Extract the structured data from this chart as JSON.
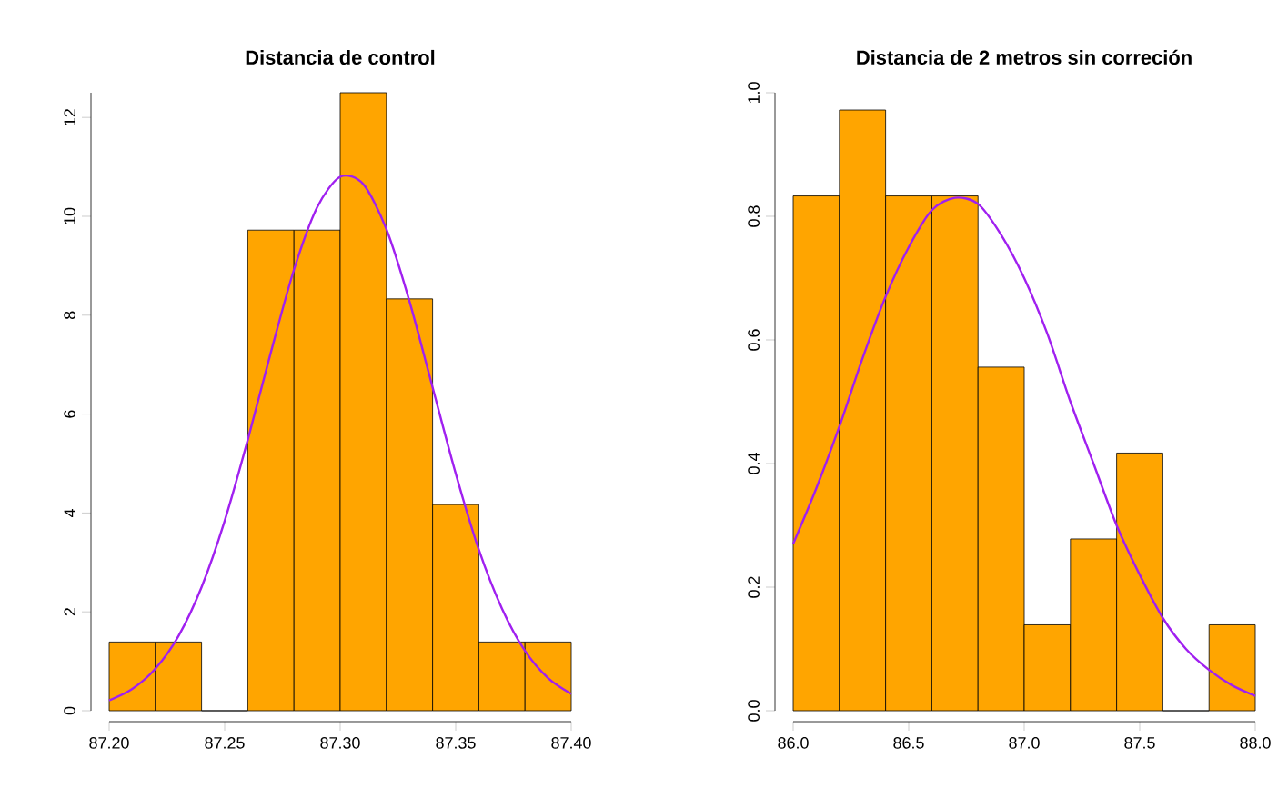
{
  "chart_data": [
    {
      "type": "histogram",
      "title": "Distancia de control",
      "bins": [
        87.2,
        87.22,
        87.24,
        87.26,
        87.28,
        87.3,
        87.32,
        87.34,
        87.36,
        87.38,
        87.4
      ],
      "values": [
        1.39,
        1.39,
        0,
        9.72,
        9.72,
        12.5,
        8.33,
        4.17,
        1.39,
        1.39
      ],
      "color": "#ffa500",
      "series": [
        {
          "type": "line",
          "color": "#a020f0",
          "x": [
            87.2,
            87.21,
            87.22,
            87.23,
            87.24,
            87.25,
            87.26,
            87.27,
            87.28,
            87.29,
            87.3,
            87.31,
            87.32,
            87.33,
            87.34,
            87.35,
            87.36,
            87.37,
            87.38,
            87.39,
            87.4
          ],
          "values": [
            0.21,
            0.44,
            0.85,
            1.51,
            2.5,
            3.84,
            5.48,
            7.25,
            8.92,
            10.18,
            10.8,
            10.65,
            9.74,
            8.28,
            6.54,
            4.8,
            3.26,
            2.07,
            1.21,
            0.66,
            0.34
          ]
        }
      ],
      "xlim": [
        87.2,
        87.4
      ],
      "ylim": [
        0,
        12.5
      ],
      "xticks": [
        {
          "value": 87.2,
          "label": "87.20"
        },
        {
          "value": 87.25,
          "label": "87.25"
        },
        {
          "value": 87.3,
          "label": "87.30"
        },
        {
          "value": 87.35,
          "label": "87.35"
        },
        {
          "value": 87.4,
          "label": "87.40"
        }
      ],
      "yticks": [
        0,
        2,
        4,
        6,
        8,
        10,
        12
      ]
    },
    {
      "type": "histogram",
      "title": "Distancia de 2 metros sin correción",
      "bins": [
        86.0,
        86.2,
        86.4,
        86.6,
        86.8,
        87.0,
        87.2,
        87.4,
        87.6,
        87.8,
        88.0
      ],
      "values": [
        0.833,
        0.972,
        0.833,
        0.833,
        0.556,
        0.139,
        0.278,
        0.417,
        0,
        0.139
      ],
      "color": "#ffa500",
      "series": [
        {
          "type": "line",
          "color": "#a020f0",
          "x": [
            86.0,
            86.1,
            86.2,
            86.3,
            86.4,
            86.5,
            86.6,
            86.7,
            86.8,
            86.9,
            87.0,
            87.1,
            87.2,
            87.3,
            87.4,
            87.5,
            87.6,
            87.7,
            87.8,
            87.9,
            88.0
          ],
          "values": [
            0.27,
            0.36,
            0.46,
            0.57,
            0.67,
            0.75,
            0.81,
            0.83,
            0.82,
            0.77,
            0.7,
            0.61,
            0.5,
            0.4,
            0.3,
            0.22,
            0.15,
            0.1,
            0.066,
            0.041,
            0.024
          ]
        }
      ],
      "xlim": [
        86.0,
        88.0
      ],
      "ylim": [
        0,
        1.0
      ],
      "xticks": [
        {
          "value": 86.0,
          "label": "86.0"
        },
        {
          "value": 86.5,
          "label": "86.5"
        },
        {
          "value": 87.0,
          "label": "87.0"
        },
        {
          "value": 87.5,
          "label": "87.5"
        },
        {
          "value": 88.0,
          "label": "88.0"
        }
      ],
      "yticks": [
        {
          "value": 0.0,
          "label": "0.0"
        },
        {
          "value": 0.2,
          "label": "0.2"
        },
        {
          "value": 0.4,
          "label": "0.4"
        },
        {
          "value": 0.6,
          "label": "0.6"
        },
        {
          "value": 0.8,
          "label": "0.8"
        },
        {
          "value": 1.0,
          "label": "1.0"
        }
      ]
    }
  ]
}
